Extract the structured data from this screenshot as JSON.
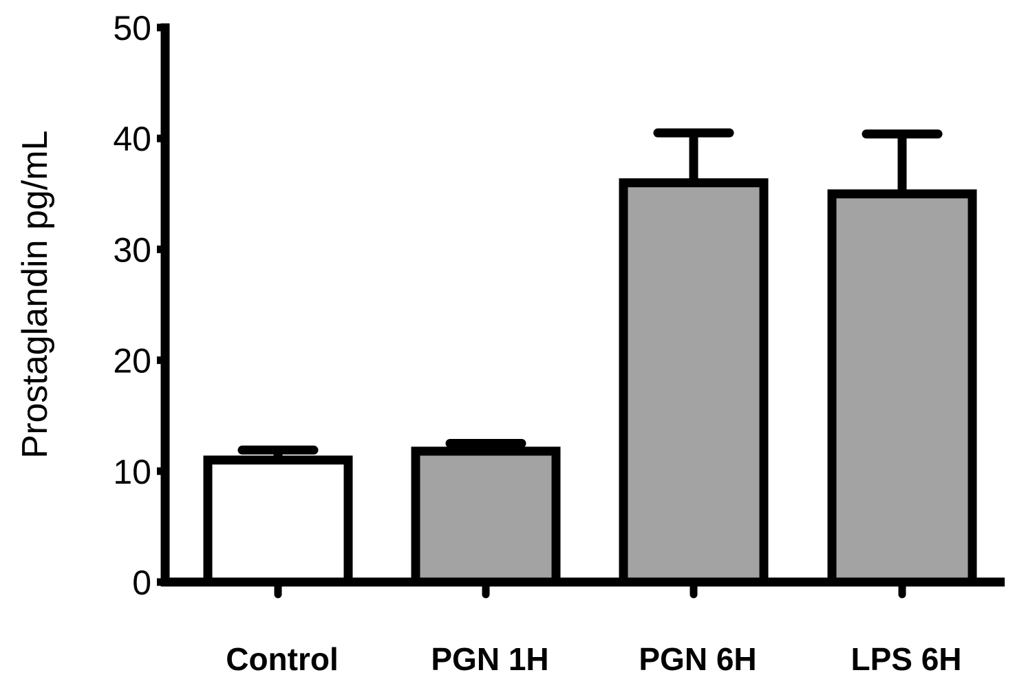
{
  "chart_data": {
    "type": "bar",
    "title": "",
    "xlabel": "",
    "ylabel": "Prostaglandin pg/mL",
    "categories": [
      "Control",
      "PGN 1H",
      "PGN 6H",
      "LPS 6H"
    ],
    "values": [
      11,
      11.8,
      36,
      35
    ],
    "errors": [
      0.9,
      0.7,
      4.5,
      5.4
    ],
    "bar_colors": [
      "#ffffff",
      "#a3a3a3",
      "#a3a3a3",
      "#a3a3a3"
    ],
    "ylim": [
      0,
      50
    ],
    "yticks": [
      0,
      10,
      20,
      30,
      40,
      50
    ],
    "grid": false,
    "legend": "none"
  }
}
